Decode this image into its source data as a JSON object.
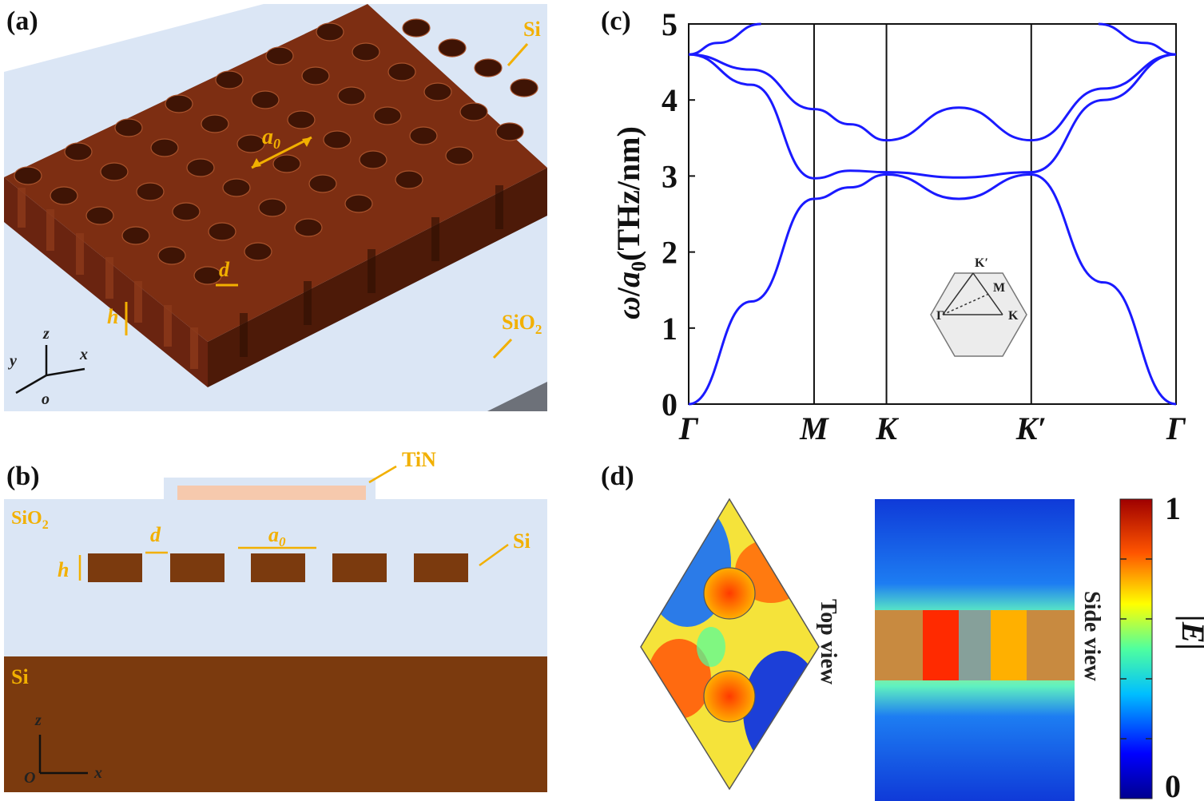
{
  "panels": {
    "a": {
      "label": "(a)",
      "materials": {
        "si": "Si",
        "sio2_main": "SiO",
        "sio2_sub": "2"
      },
      "dims": {
        "a": "a",
        "a_sub": "0",
        "d": "d",
        "h": "h"
      },
      "axes": {
        "x": "x",
        "y": "y",
        "z": "z",
        "o": "o"
      }
    },
    "b": {
      "label": "(b)",
      "materials": {
        "tin": "TiN",
        "sio2_main": "SiO",
        "sio2_sub": "2",
        "si_right": "Si",
        "si_substrate": "Si"
      },
      "dims": {
        "d": "d",
        "a": "a",
        "a_sub": "0",
        "h": "h"
      },
      "axes": {
        "z": "z",
        "o": "O",
        "x": "x"
      }
    },
    "c": {
      "label": "(c)",
      "ylabel": {
        "omega": "ω",
        "slash": "/",
        "a": "a",
        "a_sub": "0",
        "units": "(THz/nm)"
      },
      "yticks": [
        "0",
        "1",
        "2",
        "3",
        "4",
        "5"
      ],
      "xticks": [
        "Γ",
        "M",
        "K",
        "K′",
        "Γ"
      ],
      "bz_inset": {
        "gamma": "Γ",
        "m": "M",
        "k": "K",
        "kprime": "K′"
      }
    },
    "d": {
      "label": "(d)",
      "top_view": "Top view",
      "side_view": "Side view",
      "colorbar": {
        "max": "1",
        "min": "0",
        "label": "|E|"
      }
    }
  },
  "colors": {
    "silicon": "#7b2f12",
    "silicon_dark": "#4a1a06",
    "silica": "#dfe8f6",
    "tin": "#f6c9ad",
    "annotation": "#f2b000",
    "band": "#1a1aff"
  },
  "chart_data": {
    "type": "line",
    "title": "",
    "xlabel": "",
    "ylabel": "ω/a0(THz/nm)",
    "ylim": [
      0,
      5
    ],
    "x_high_symmetry": [
      {
        "label": "Γ",
        "pos": 0
      },
      {
        "label": "M",
        "pos": 0.866
      },
      {
        "label": "K",
        "pos": 1.366
      },
      {
        "label": "K′",
        "pos": 2.366
      },
      {
        "label": "Γ",
        "pos": 3.366
      }
    ],
    "series": [
      {
        "points": [
          [
            0,
            0
          ],
          [
            0.433,
            1.35
          ],
          [
            0.866,
            2.7
          ],
          [
            1.116,
            2.85
          ],
          [
            1.366,
            3.02
          ],
          [
            1.866,
            2.7
          ],
          [
            2.366,
            3.02
          ],
          [
            2.866,
            1.6
          ],
          [
            3.366,
            0
          ]
        ]
      },
      {
        "points": [
          [
            0,
            4.6
          ],
          [
            0.433,
            4.2
          ],
          [
            0.866,
            2.97
          ],
          [
            1.116,
            3.07
          ],
          [
            1.366,
            3.05
          ],
          [
            1.866,
            2.98
          ],
          [
            2.366,
            3.05
          ],
          [
            2.866,
            4.0
          ],
          [
            3.366,
            4.6
          ]
        ]
      },
      {
        "points": [
          [
            0,
            4.6
          ],
          [
            0.433,
            4.4
          ],
          [
            0.866,
            3.88
          ],
          [
            1.116,
            3.68
          ],
          [
            1.366,
            3.47
          ],
          [
            1.866,
            3.9
          ],
          [
            2.366,
            3.47
          ],
          [
            2.866,
            4.15
          ],
          [
            3.366,
            4.6
          ]
        ]
      },
      {
        "points": [
          [
            0,
            4.6
          ],
          [
            0.2,
            4.75
          ],
          [
            0.5,
            5.0
          ]
        ]
      },
      {
        "points": [
          [
            2.83,
            5.0
          ],
          [
            3.15,
            4.75
          ],
          [
            3.366,
            4.6
          ]
        ]
      }
    ]
  }
}
